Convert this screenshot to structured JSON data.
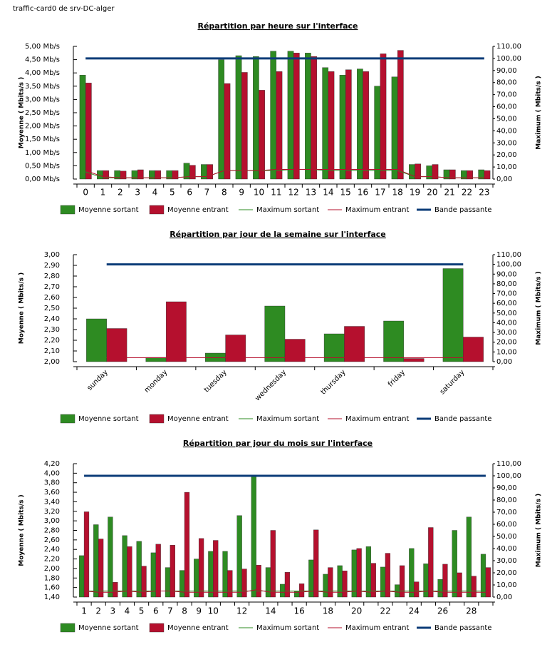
{
  "page_title": "traffic-card0 de srv-DC-alger",
  "chart_data": [
    {
      "type": "bar",
      "title": "Répartition par heure sur l'interface",
      "y_label": "Moyenne ( Mbits/s )",
      "y2_label": "Maximum ( Mbits/s )",
      "categories": [
        0,
        1,
        2,
        3,
        4,
        5,
        6,
        7,
        8,
        9,
        10,
        11,
        12,
        13,
        14,
        15,
        16,
        17,
        18,
        19,
        20,
        21,
        22,
        23
      ],
      "series": [
        {
          "name": "Moyenne sortant",
          "color": "#2e8b22",
          "values": [
            3.92,
            0.32,
            0.32,
            0.32,
            0.32,
            0.32,
            0.6,
            0.55,
            4.5,
            4.65,
            4.62,
            4.82,
            4.82,
            4.75,
            4.2,
            3.92,
            4.15,
            3.5,
            3.85,
            0.55,
            0.5,
            0.35,
            0.32,
            0.35
          ]
        },
        {
          "name": "Moyenne entrant",
          "color": "#b5102e",
          "values": [
            3.62,
            0.32,
            0.3,
            0.35,
            0.32,
            0.32,
            0.52,
            0.55,
            3.6,
            4.02,
            3.35,
            4.05,
            4.75,
            4.62,
            4.05,
            4.12,
            4.05,
            4.72,
            4.85,
            0.57,
            0.55,
            0.35,
            0.32,
            0.32
          ]
        },
        {
          "name": "Maximum sortant",
          "color": "#2e8b22",
          "axis": "y2",
          "values": [
            6,
            1,
            1,
            1,
            1,
            1,
            2,
            2,
            7,
            7,
            7,
            7,
            8,
            8,
            7,
            7,
            7,
            7,
            7,
            2,
            2,
            1,
            1,
            1
          ]
        },
        {
          "name": "Maximum entrant",
          "color": "#b5102e",
          "axis": "y2",
          "values": [
            7,
            2,
            1,
            1,
            1,
            1,
            2,
            2,
            7,
            7,
            7,
            8,
            8,
            8,
            8,
            8,
            8,
            8,
            8,
            2,
            2,
            1,
            1,
            1
          ]
        },
        {
          "name": "Bande passante",
          "color": "#0c3c78",
          "axis": "y2",
          "values": [
            100,
            100,
            100,
            100,
            100,
            100,
            100,
            100,
            100,
            100,
            100,
            100,
            100,
            100,
            100,
            100,
            100,
            100,
            100,
            100,
            100,
            100,
            100,
            100
          ]
        }
      ],
      "ylim": [
        0,
        5
      ],
      "yticks": [
        {
          "value": 0,
          "label": "0,00 Mb/s"
        },
        {
          "value": 0.5,
          "label": "0,50 Mb/s"
        },
        {
          "value": 1,
          "label": "1,00 Mb/s"
        },
        {
          "value": 1.5,
          "label": "1,50 Mb/s"
        },
        {
          "value": 2,
          "label": "2,00 Mb/s"
        },
        {
          "value": 2.5,
          "label": "2,50 Mb/s"
        },
        {
          "value": 3,
          "label": "3,00 Mb/s"
        },
        {
          "value": 3.5,
          "label": "3,50 Mb/s"
        },
        {
          "value": 4,
          "label": "4,00 Mb/s"
        },
        {
          "value": 4.5,
          "label": "4,50 Mb/s"
        },
        {
          "value": 5,
          "label": "5,00 Mb/s"
        }
      ],
      "y2lim": [
        0,
        110
      ],
      "y2ticks": [
        {
          "value": 0,
          "label": "0,00"
        },
        {
          "value": 10,
          "label": "10,00"
        },
        {
          "value": 20,
          "label": "20,00"
        },
        {
          "value": 30,
          "label": "30,00"
        },
        {
          "value": 40,
          "label": "40,00"
        },
        {
          "value": 50,
          "label": "50,00"
        },
        {
          "value": 60,
          "label": "60,00"
        },
        {
          "value": 70,
          "label": "70,00"
        },
        {
          "value": 80,
          "label": "80,00"
        },
        {
          "value": 90,
          "label": "90,00"
        },
        {
          "value": 100,
          "label": "100,00"
        },
        {
          "value": 110,
          "label": "110,00"
        }
      ],
      "grid": false
    },
    {
      "type": "bar",
      "title": "Répartition par jour de la semaine sur l'interface",
      "y_label": "Moyenne ( Mbits/s )",
      "y2_label": "Maximum ( Mbits/s )",
      "categories": [
        "sunday",
        "monday",
        "tuesday",
        "wednesday",
        "thursday",
        "friday",
        "saturday"
      ],
      "xtick_rotation": -45,
      "series": [
        {
          "name": "Moyenne sortant",
          "color": "#2e8b22",
          "values": [
            2.4,
            2.04,
            2.08,
            2.52,
            2.26,
            2.38,
            2.87
          ]
        },
        {
          "name": "Moyenne entrant",
          "color": "#b5102e",
          "values": [
            2.31,
            2.56,
            2.25,
            2.21,
            2.33,
            2.03,
            2.23
          ]
        },
        {
          "name": "Maximum sortant",
          "color": "#2e8b22",
          "axis": "y2",
          "values": [
            4,
            4,
            4,
            4,
            4,
            4,
            4
          ]
        },
        {
          "name": "Maximum entrant",
          "color": "#b5102e",
          "axis": "y2",
          "values": [
            4,
            4,
            4,
            4,
            4,
            4,
            4
          ]
        },
        {
          "name": "Bande passante",
          "color": "#0c3c78",
          "axis": "y2",
          "values": [
            100,
            100,
            100,
            100,
            100,
            100,
            100
          ]
        }
      ],
      "ylim": [
        2,
        3
      ],
      "yticks": [
        {
          "value": 2,
          "label": "2,00"
        },
        {
          "value": 2.1,
          "label": "2,10"
        },
        {
          "value": 2.2,
          "label": "2,20"
        },
        {
          "value": 2.3,
          "label": "2,30"
        },
        {
          "value": 2.4,
          "label": "2,40"
        },
        {
          "value": 2.5,
          "label": "2,50"
        },
        {
          "value": 2.6,
          "label": "2,60"
        },
        {
          "value": 2.7,
          "label": "2,70"
        },
        {
          "value": 2.8,
          "label": "2,80"
        },
        {
          "value": 2.9,
          "label": "2,90"
        },
        {
          "value": 3,
          "label": "3,00"
        }
      ],
      "y2lim": [
        0,
        110
      ],
      "y2ticks": [
        {
          "value": 0,
          "label": "0,00"
        },
        {
          "value": 10,
          "label": "10,00"
        },
        {
          "value": 20,
          "label": "20,00"
        },
        {
          "value": 30,
          "label": "30,00"
        },
        {
          "value": 40,
          "label": "40,00"
        },
        {
          "value": 50,
          "label": "50,00"
        },
        {
          "value": 60,
          "label": "60,00"
        },
        {
          "value": 70,
          "label": "70,00"
        },
        {
          "value": 80,
          "label": "80,00"
        },
        {
          "value": 90,
          "label": "90,00"
        },
        {
          "value": 100,
          "label": "100,00"
        },
        {
          "value": 110,
          "label": "110,00"
        }
      ],
      "grid": false
    },
    {
      "type": "bar",
      "title": "Répartition par jour du mois sur l'interface",
      "y_label": "Moyenne ( Mbits/s )",
      "y2_label": "Maximum ( Mbits/s )",
      "categories": [
        1,
        2,
        3,
        4,
        5,
        6,
        7,
        8,
        9,
        10,
        null,
        12,
        null,
        14,
        null,
        16,
        null,
        18,
        null,
        20,
        null,
        22,
        null,
        24,
        null,
        26,
        null,
        28,
        null
      ],
      "series": [
        {
          "name": "Moyenne sortant",
          "color": "#2e8b22",
          "values": [
            2.27,
            2.92,
            3.08,
            2.69,
            2.57,
            2.33,
            2.02,
            1.96,
            2.2,
            2.36,
            2.36,
            3.11,
            3.93,
            2.02,
            1.67,
            1.53,
            2.18,
            1.88,
            2.06,
            2.39,
            2.46,
            2.03,
            1.66,
            2.42,
            2.1,
            1.77,
            2.8,
            3.08,
            2.3
          ]
        },
        {
          "name": "Moyenne entrant",
          "color": "#b5102e",
          "values": [
            3.19,
            2.62,
            1.71,
            2.46,
            2.05,
            2.51,
            2.49,
            3.6,
            2.63,
            2.59,
            1.96,
            1.99,
            2.07,
            2.8,
            1.92,
            1.68,
            2.81,
            2.02,
            1.95,
            2.42,
            2.11,
            2.32,
            2.06,
            1.72,
            2.86,
            2.09,
            1.91,
            1.84,
            2.02
          ]
        },
        {
          "name": "Maximum sortant",
          "color": "#2e8b22",
          "axis": "y2",
          "values": [
            5,
            5,
            5,
            5,
            5,
            5,
            5,
            5,
            5,
            5,
            5,
            5,
            5,
            5,
            5,
            5,
            5,
            5,
            5,
            5,
            5,
            5,
            5,
            5,
            5,
            5,
            5,
            5,
            5
          ]
        },
        {
          "name": "Maximum entrant",
          "color": "#b5102e",
          "axis": "y2",
          "values": [
            5,
            4,
            4,
            5,
            4,
            5,
            5,
            4,
            4,
            4,
            4,
            4,
            6,
            4,
            4,
            4,
            5,
            4,
            4,
            5,
            4,
            5,
            4,
            4,
            5,
            4,
            4,
            4,
            4
          ]
        },
        {
          "name": "Bande passante",
          "color": "#0c3c78",
          "axis": "y2",
          "values": [
            100,
            100,
            100,
            100,
            100,
            100,
            100,
            100,
            100,
            100,
            100,
            100,
            100,
            100,
            100,
            100,
            100,
            100,
            100,
            100,
            100,
            100,
            100,
            100,
            100,
            100,
            100,
            100,
            100
          ]
        }
      ],
      "ylim": [
        1.4,
        4.2
      ],
      "yticks": [
        {
          "value": 1.4,
          "label": "1,40"
        },
        {
          "value": 1.6,
          "label": "1,60"
        },
        {
          "value": 1.8,
          "label": "1,80"
        },
        {
          "value": 2,
          "label": "2,00"
        },
        {
          "value": 2.2,
          "label": "2,20"
        },
        {
          "value": 2.4,
          "label": "2,40"
        },
        {
          "value": 2.6,
          "label": "2,60"
        },
        {
          "value": 2.8,
          "label": "2,80"
        },
        {
          "value": 3,
          "label": "3,00"
        },
        {
          "value": 3.2,
          "label": "3,20"
        },
        {
          "value": 3.4,
          "label": "3,40"
        },
        {
          "value": 3.6,
          "label": "3,60"
        },
        {
          "value": 3.8,
          "label": "3,80"
        },
        {
          "value": 4,
          "label": "4,00"
        },
        {
          "value": 4.2,
          "label": "4,20"
        }
      ],
      "y2lim": [
        0,
        110
      ],
      "y2ticks": [
        {
          "value": 0,
          "label": "0,00"
        },
        {
          "value": 10,
          "label": "10,00"
        },
        {
          "value": 20,
          "label": "20,00"
        },
        {
          "value": 30,
          "label": "30,00"
        },
        {
          "value": 40,
          "label": "40,00"
        },
        {
          "value": 50,
          "label": "50,00"
        },
        {
          "value": 60,
          "label": "60,00"
        },
        {
          "value": 70,
          "label": "70,00"
        },
        {
          "value": 80,
          "label": "80,00"
        },
        {
          "value": 90,
          "label": "90,00"
        },
        {
          "value": 100,
          "label": "100,00"
        },
        {
          "value": 110,
          "label": "110,00"
        }
      ],
      "grid": false
    }
  ]
}
